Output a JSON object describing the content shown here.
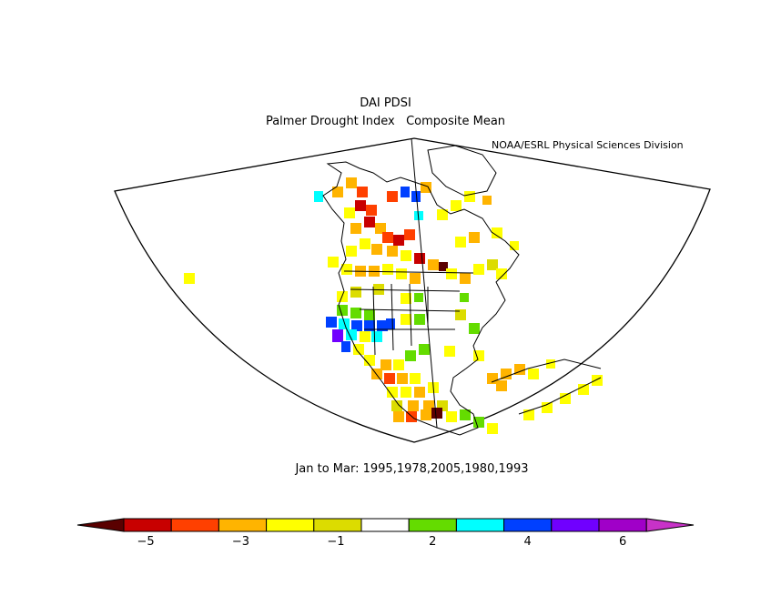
{
  "title": "DAI PDSI",
  "subtitle": "Palmer Drought Index   Composite Mean",
  "credit": "NOAA/ESRL Physical Sciences Division",
  "caption": "Jan to Mar: 1995,1978,2005,1980,1993",
  "colorbar": {
    "colors": [
      "#5a0000",
      "#c80000",
      "#ff4000",
      "#ffb400",
      "#ffff00",
      "#dcdc00",
      "#ffffff",
      "#64dc00",
      "#00ffff",
      "#0040ff",
      "#7000ff",
      "#a000c8",
      "#c832c8"
    ],
    "ticks": [
      "−5",
      "−3",
      "−1",
      "2",
      "4",
      "6"
    ]
  },
  "legend_label_bins": [
    1,
    3,
    5,
    7,
    9,
    11
  ]
}
